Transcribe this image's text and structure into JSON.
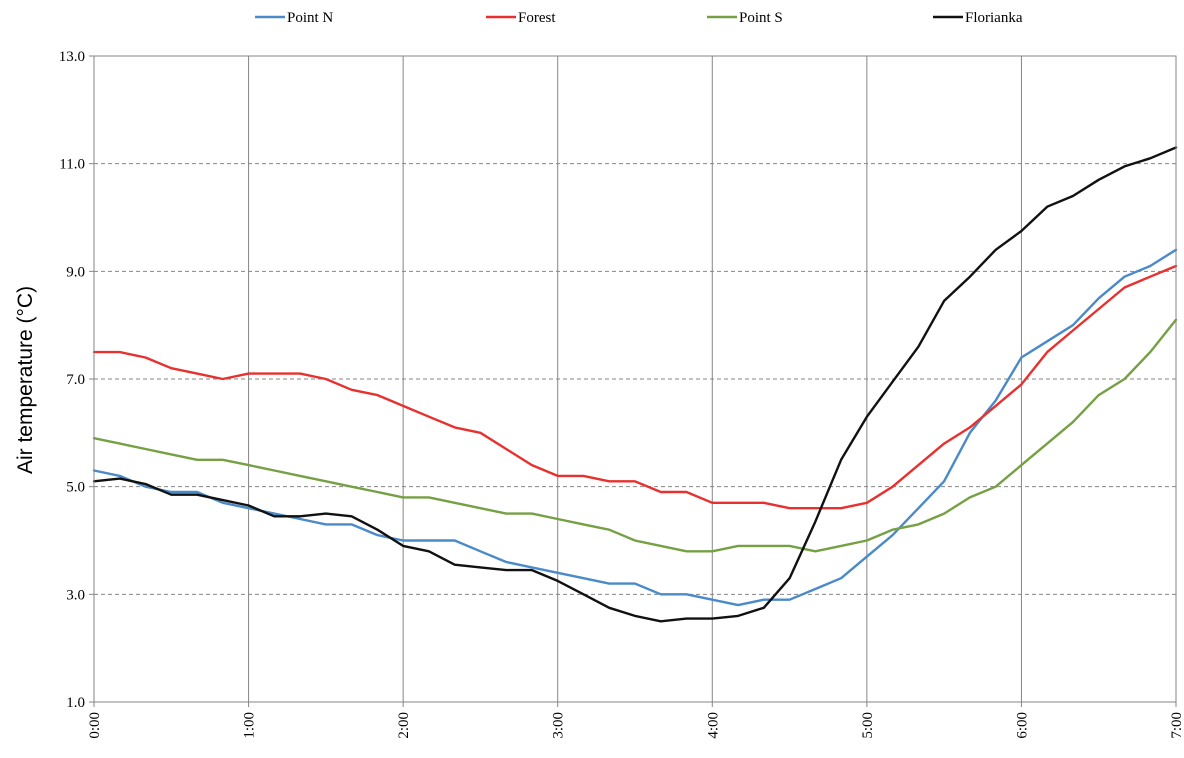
{
  "chart_data": {
    "type": "line",
    "title": "",
    "xlabel": "",
    "ylabel": "Air temperature (°C)",
    "ylim": [
      1.0,
      13.0
    ],
    "xlim": [
      0,
      7
    ],
    "x_unit": "hours",
    "x_ticks": [
      0,
      1,
      2,
      3,
      4,
      5,
      6,
      7
    ],
    "x_tick_labels": [
      "0:00",
      "1:00",
      "2:00",
      "3:00",
      "4:00",
      "5:00",
      "6:00",
      "7:00"
    ],
    "y_ticks": [
      1.0,
      3.0,
      5.0,
      7.0,
      9.0,
      11.0,
      13.0
    ],
    "y_tick_labels": [
      "1.0",
      "3.0",
      "5.0",
      "7.0",
      "9.0",
      "11.0",
      "13.0"
    ],
    "grid": {
      "vertical": "solid",
      "horizontal": "dashed"
    },
    "legend": "top",
    "x": [
      0,
      0.1667,
      0.3333,
      0.5,
      0.6667,
      0.8333,
      1,
      1.1667,
      1.3333,
      1.5,
      1.6667,
      1.8333,
      2,
      2.1667,
      2.3333,
      2.5,
      2.6667,
      2.8333,
      3,
      3.1667,
      3.3333,
      3.5,
      3.6667,
      3.8333,
      4,
      4.1667,
      4.3333,
      4.5,
      4.6667,
      4.8333,
      5,
      5.1667,
      5.3333,
      5.5,
      5.6667,
      5.8333,
      6,
      6.1667,
      6.3333,
      6.5,
      6.6667,
      6.8333,
      7
    ],
    "series": [
      {
        "name": "Point N",
        "color": "#4a8ac9",
        "values": [
          5.3,
          5.2,
          5.0,
          4.9,
          4.9,
          4.7,
          4.6,
          4.5,
          4.4,
          4.3,
          4.3,
          4.1,
          4.0,
          4.0,
          4.0,
          3.8,
          3.6,
          3.5,
          3.4,
          3.3,
          3.2,
          3.2,
          3.0,
          3.0,
          2.9,
          2.8,
          2.9,
          2.9,
          3.1,
          3.3,
          3.7,
          4.1,
          4.6,
          5.1,
          6.0,
          6.6,
          7.4,
          7.7,
          8.0,
          8.5,
          8.9,
          9.1,
          9.4
        ]
      },
      {
        "name": "Forest",
        "color": "#e8312f",
        "values": [
          7.5,
          7.5,
          7.4,
          7.2,
          7.1,
          7.0,
          7.1,
          7.1,
          7.1,
          7.0,
          6.8,
          6.7,
          6.5,
          6.3,
          6.1,
          6.0,
          5.7,
          5.4,
          5.2,
          5.2,
          5.1,
          5.1,
          4.9,
          4.9,
          4.7,
          4.7,
          4.7,
          4.6,
          4.6,
          4.6,
          4.7,
          5.0,
          5.4,
          5.8,
          6.1,
          6.5,
          6.9,
          7.5,
          7.9,
          8.3,
          8.7,
          8.9,
          9.1
        ]
      },
      {
        "name": "Point S",
        "color": "#76a044",
        "values": [
          5.9,
          5.8,
          5.7,
          5.6,
          5.5,
          5.5,
          5.4,
          5.3,
          5.2,
          5.1,
          5.0,
          4.9,
          4.8,
          4.8,
          4.7,
          4.6,
          4.5,
          4.5,
          4.4,
          4.3,
          4.2,
          4.0,
          3.9,
          3.8,
          3.8,
          3.9,
          3.9,
          3.9,
          3.8,
          3.9,
          4.0,
          4.2,
          4.3,
          4.5,
          4.8,
          5.0,
          5.4,
          5.8,
          6.2,
          6.7,
          7.0,
          7.5,
          8.1
        ]
      },
      {
        "name": "Florianka",
        "color": "#111111",
        "values": [
          5.1,
          5.15,
          5.05,
          4.85,
          4.85,
          4.75,
          4.65,
          4.45,
          4.45,
          4.5,
          4.45,
          4.2,
          3.9,
          3.8,
          3.55,
          3.5,
          3.45,
          3.45,
          3.25,
          3.0,
          2.75,
          2.6,
          2.5,
          2.55,
          2.55,
          2.6,
          2.75,
          3.3,
          4.35,
          5.5,
          6.3,
          6.95,
          7.6,
          8.45,
          8.9,
          9.4,
          9.75,
          10.2,
          10.4,
          10.7,
          10.95,
          11.1,
          11.3
        ]
      }
    ]
  }
}
